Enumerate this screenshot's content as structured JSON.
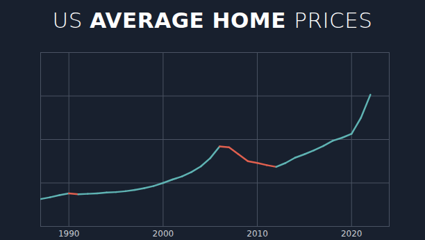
{
  "chart_data": {
    "type": "line",
    "title": "US AVERAGE HOME PRICES",
    "x": [
      1987,
      1988,
      1989,
      1990,
      1991,
      1992,
      1993,
      1994,
      1995,
      1996,
      1997,
      1998,
      1999,
      2000,
      2001,
      2002,
      2003,
      2004,
      2005,
      2006,
      2007,
      2008,
      2009,
      2010,
      2011,
      2012,
      2013,
      2014,
      2015,
      2016,
      2017,
      2018,
      2019,
      2020,
      2021,
      2022
    ],
    "values": [
      63,
      67,
      72,
      76,
      74,
      75,
      76,
      78,
      79,
      81,
      84,
      88,
      93,
      100,
      108,
      115,
      125,
      138,
      157,
      184,
      182,
      166,
      150,
      146,
      141,
      137,
      146,
      158,
      166,
      175,
      185,
      197,
      204,
      213,
      250,
      303
    ],
    "colors": [
      "#5fb3b3",
      "#5fb3b3",
      "#5fb3b3",
      "#5fb3b3",
      "#e0604f",
      "#5fb3b3",
      "#5fb3b3",
      "#5fb3b3",
      "#5fb3b3",
      "#5fb3b3",
      "#5fb3b3",
      "#5fb3b3",
      "#5fb3b3",
      "#5fb3b3",
      "#5fb3b3",
      "#5fb3b3",
      "#5fb3b3",
      "#5fb3b3",
      "#5fb3b3",
      "#5fb3b3",
      "#e0604f",
      "#e0604f",
      "#e0604f",
      "#e0604f",
      "#e0604f",
      "#e0604f",
      "#5fb3b3",
      "#5fb3b3",
      "#5fb3b3",
      "#5fb3b3",
      "#5fb3b3",
      "#5fb3b3",
      "#5fb3b3",
      "#5fb3b3",
      "#5fb3b3",
      "#5fb3b3"
    ],
    "xlim": [
      1987,
      2024
    ],
    "xticks": [
      1990,
      2000,
      2010,
      2020
    ],
    "ylim": [
      0,
      400
    ],
    "yticks": [
      0,
      100,
      200,
      300,
      400
    ],
    "grid": true,
    "tick_labels": "x"
  }
}
